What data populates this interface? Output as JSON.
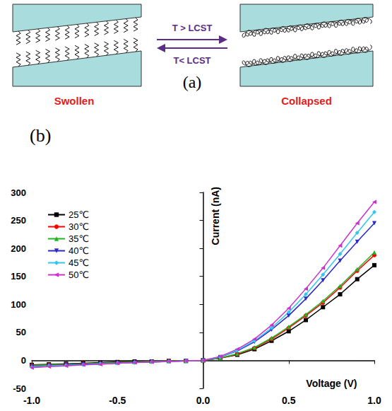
{
  "diagram": {
    "label": "(a)",
    "left_state": "Swollen",
    "right_state": "Collapsed",
    "arrow_forward": "T > LCST",
    "arrow_back": "T< LCST"
  },
  "chart_data": {
    "type": "line",
    "label": "(b)",
    "x_label": "Voltage (V)",
    "y_label": "Current (nA)",
    "x": [
      -1.0,
      -0.9,
      -0.8,
      -0.7,
      -0.6,
      -0.5,
      -0.4,
      -0.3,
      -0.2,
      -0.1,
      0.0,
      0.1,
      0.2,
      0.3,
      0.4,
      0.5,
      0.6,
      0.7,
      0.8,
      0.9,
      1.0
    ],
    "series": [
      {
        "name": "25℃",
        "color": "#000000",
        "marker": "square",
        "line_style": "solid",
        "values": [
          -8,
          -7,
          -6,
          -5,
          -4,
          -3,
          -2,
          -2,
          -1,
          -1,
          0,
          4,
          10,
          20,
          35,
          52,
          72,
          95,
          118,
          145,
          170
        ]
      },
      {
        "name": "30℃",
        "color": "#ff0000",
        "marker": "circle",
        "line_style": "solid",
        "values": [
          -9,
          -8,
          -7,
          -6,
          -5,
          -4,
          -3,
          -2,
          -1,
          -1,
          0,
          4,
          11,
          22,
          38,
          58,
          80,
          103,
          130,
          160,
          188
        ]
      },
      {
        "name": "35℃",
        "color": "#22b422",
        "marker": "triangle-up",
        "line_style": "solid",
        "values": [
          -9,
          -8,
          -7,
          -6,
          -5,
          -4,
          -3,
          -2,
          -1,
          -1,
          0,
          4,
          12,
          23,
          40,
          60,
          82,
          106,
          133,
          163,
          193
        ]
      },
      {
        "name": "40℃",
        "color": "#2a2ac8",
        "marker": "triangle-down",
        "line_style": "solid",
        "values": [
          -11,
          -10,
          -8,
          -7,
          -6,
          -5,
          -4,
          -3,
          -2,
          -1,
          0,
          6,
          17,
          33,
          55,
          80,
          110,
          143,
          178,
          212,
          245
        ]
      },
      {
        "name": "45℃",
        "color": "#33c6ee",
        "marker": "diamond",
        "line_style": "solid",
        "values": [
          -12,
          -10,
          -9,
          -8,
          -6,
          -5,
          -4,
          -3,
          -2,
          -1,
          0,
          6,
          18,
          35,
          58,
          86,
          118,
          153,
          190,
          228,
          265
        ]
      },
      {
        "name": "50℃",
        "color": "#cc33cc",
        "marker": "triangle-left",
        "line_style": "solid",
        "values": [
          -13,
          -11,
          -10,
          -8,
          -7,
          -5,
          -4,
          -3,
          -2,
          -1,
          0,
          7,
          20,
          38,
          63,
          93,
          128,
          165,
          205,
          245,
          283
        ]
      }
    ],
    "xlim": [
      -1.0,
      1.0
    ],
    "xticks": [
      {
        "value": -1.0,
        "label": "-1.0"
      },
      {
        "value": -0.5,
        "label": "-0.5"
      },
      {
        "value": 0,
        "label": "0.0"
      },
      {
        "value": 0.5,
        "label": "0.5"
      },
      {
        "value": 1.0,
        "label": "1.0"
      }
    ],
    "ylim": [
      -50,
      300
    ],
    "yticks": [
      -50,
      0,
      50,
      100,
      150,
      200,
      250,
      300
    ],
    "grid": false,
    "legend": "upper left"
  }
}
